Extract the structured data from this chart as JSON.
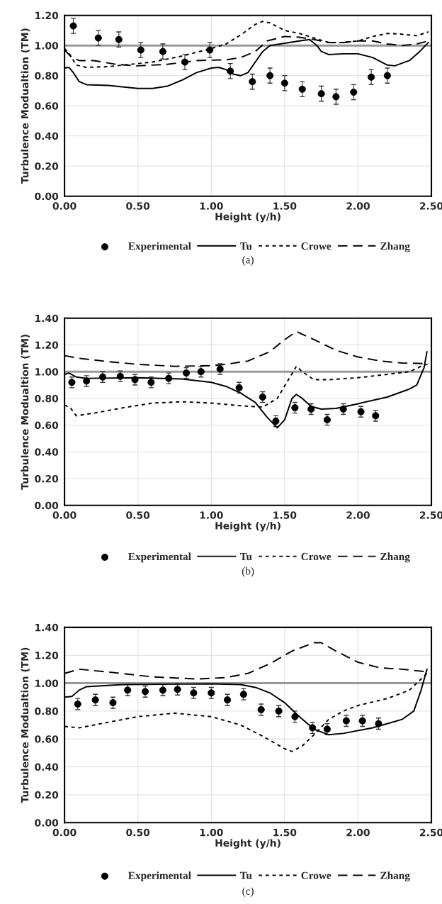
{
  "chart_data": [
    {
      "type": "line",
      "xlabel": "Height (y/h)",
      "ylabel": "Turbulence Modualtion (TM)",
      "xlim": [
        0,
        2.5
      ],
      "ylim": [
        0,
        1.2
      ],
      "xticks": [
        {
          "value": 0,
          "label": "0.00"
        },
        {
          "value": 0.5,
          "label": "0.50"
        },
        {
          "value": 1,
          "label": "1.00"
        },
        {
          "value": 1.5,
          "label": "1.50"
        },
        {
          "value": 2,
          "label": "2.00"
        },
        {
          "value": 2.5,
          "label": "2.50"
        }
      ],
      "yticks": [
        {
          "value": 0,
          "label": "0.00"
        },
        {
          "value": 0.2,
          "label": "0.20"
        },
        {
          "value": 0.4,
          "label": "0.40"
        },
        {
          "value": 0.6,
          "label": "0.60"
        },
        {
          "value": 0.8,
          "label": "0.80"
        },
        {
          "value": 1,
          "label": "1.00"
        },
        {
          "value": 1.2,
          "label": "1.20"
        }
      ],
      "grid": true,
      "legend": "bottom",
      "annotations": [
        "(a)"
      ],
      "ref_lines": [
        {
          "axis": "y",
          "value": 1,
          "color": "#999999"
        }
      ],
      "series": [
        {
          "name": "Experimental",
          "type": "scatter",
          "marker": "circle",
          "color": "#000000",
          "x": [
            0.06,
            0.23,
            0.37,
            0.52,
            0.67,
            0.82,
            0.99,
            1.13,
            1.28,
            1.4,
            1.5,
            1.62,
            1.75,
            1.85,
            1.97,
            2.09,
            2.2
          ],
          "values": [
            1.13,
            1.05,
            1.04,
            0.97,
            0.96,
            0.89,
            0.97,
            0.83,
            0.76,
            0.8,
            0.75,
            0.71,
            0.68,
            0.66,
            0.69,
            0.79,
            0.8
          ],
          "errors": [
            0.05,
            0.05,
            0.05,
            0.05,
            0.05,
            0.05,
            0.05,
            0.05,
            0.05,
            0.05,
            0.05,
            0.05,
            0.05,
            0.05,
            0.05,
            0.05,
            0.05
          ]
        },
        {
          "name": "Tu",
          "line_style": "solid",
          "color": "#000000",
          "x": [
            0,
            0.03,
            0.06,
            0.1,
            0.15,
            0.3,
            0.5,
            0.6,
            0.7,
            0.8,
            0.9,
            1.0,
            1.05,
            1.1,
            1.15,
            1.2,
            1.25,
            1.3,
            1.35,
            1.4,
            1.5,
            1.6,
            1.67,
            1.72,
            1.75,
            1.8,
            1.9,
            2.0,
            2.1,
            2.2,
            2.25,
            2.35,
            2.42,
            2.48
          ],
          "values": [
            0.85,
            0.855,
            0.82,
            0.76,
            0.74,
            0.735,
            0.715,
            0.715,
            0.73,
            0.77,
            0.82,
            0.85,
            0.855,
            0.84,
            0.81,
            0.8,
            0.82,
            0.89,
            0.96,
            1.0,
            1.015,
            1.03,
            1.04,
            1.0,
            0.96,
            0.94,
            0.945,
            0.945,
            0.92,
            0.87,
            0.865,
            0.9,
            0.96,
            1.02
          ]
        },
        {
          "name": "Crowe",
          "line_style": "dotted",
          "color": "#000000",
          "x": [
            0,
            0.03,
            0.08,
            0.15,
            0.3,
            0.4,
            0.6,
            0.8,
            1.0,
            1.1,
            1.2,
            1.3,
            1.35,
            1.4,
            1.5,
            1.6,
            1.7,
            1.8,
            1.9,
            2.0,
            2.1,
            2.2,
            2.3,
            2.4,
            2.48
          ],
          "values": [
            0.98,
            0.95,
            0.87,
            0.855,
            0.86,
            0.87,
            0.89,
            0.93,
            0.98,
            1.01,
            1.07,
            1.14,
            1.16,
            1.15,
            1.1,
            1.08,
            1.05,
            1.02,
            1.02,
            1.03,
            1.06,
            1.08,
            1.075,
            1.065,
            1.09
          ]
        },
        {
          "name": "Zhang",
          "line_style": "dashed",
          "color": "#000000",
          "x": [
            0,
            0.05,
            0.1,
            0.2,
            0.35,
            0.5,
            0.7,
            0.9,
            1.1,
            1.2,
            1.3,
            1.38,
            1.5,
            1.6,
            1.7,
            1.8,
            1.9,
            2.0,
            2.1,
            2.2,
            2.3,
            2.4,
            2.48
          ],
          "values": [
            0.97,
            0.92,
            0.9,
            0.9,
            0.875,
            0.865,
            0.875,
            0.9,
            0.905,
            0.92,
            0.96,
            1.03,
            1.06,
            1.055,
            1.04,
            1.02,
            1.02,
            1.03,
            1.03,
            1.01,
            1.0,
            1.01,
            1.03
          ]
        }
      ]
    },
    {
      "type": "line",
      "xlabel": "Height (y/h)",
      "ylabel": "Turbulence Modualtion (TM)",
      "xlim": [
        0,
        2.5
      ],
      "ylim": [
        0,
        1.4
      ],
      "xticks": [
        {
          "value": 0,
          "label": "0.00"
        },
        {
          "value": 0.5,
          "label": "0.50"
        },
        {
          "value": 1,
          "label": "1.00"
        },
        {
          "value": 1.5,
          "label": "1.50"
        },
        {
          "value": 2,
          "label": "2.00"
        },
        {
          "value": 2.5,
          "label": "2.50"
        }
      ],
      "yticks": [
        {
          "value": 0,
          "label": "0.00"
        },
        {
          "value": 0.2,
          "label": "0.20"
        },
        {
          "value": 0.4,
          "label": "0.40"
        },
        {
          "value": 0.6,
          "label": "0.60"
        },
        {
          "value": 0.8,
          "label": "0.80"
        },
        {
          "value": 1,
          "label": "1.00"
        },
        {
          "value": 1.2,
          "label": "1.20"
        },
        {
          "value": 1.4,
          "label": "1.40"
        }
      ],
      "grid": true,
      "legend": "bottom",
      "annotations": [
        "(b)"
      ],
      "ref_lines": [
        {
          "axis": "y",
          "value": 1,
          "color": "#999999"
        }
      ],
      "series": [
        {
          "name": "Experimental",
          "type": "scatter",
          "marker": "circle",
          "color": "#000000",
          "x": [
            0.05,
            0.15,
            0.26,
            0.38,
            0.48,
            0.59,
            0.71,
            0.83,
            0.93,
            1.06,
            1.19,
            1.35,
            1.44,
            1.57,
            1.68,
            1.79,
            1.9,
            2.02,
            2.12
          ],
          "values": [
            0.92,
            0.93,
            0.96,
            0.965,
            0.94,
            0.92,
            0.95,
            0.99,
            1.0,
            1.02,
            0.88,
            0.81,
            0.63,
            0.73,
            0.72,
            0.64,
            0.72,
            0.7,
            0.67
          ],
          "errors": [
            0.04,
            0.04,
            0.04,
            0.04,
            0.04,
            0.04,
            0.04,
            0.04,
            0.04,
            0.04,
            0.04,
            0.04,
            0.04,
            0.04,
            0.04,
            0.04,
            0.04,
            0.04,
            0.04
          ]
        },
        {
          "name": "Tu",
          "line_style": "solid",
          "color": "#000000",
          "x": [
            0,
            0.03,
            0.08,
            0.15,
            0.5,
            0.8,
            1.0,
            1.1,
            1.2,
            1.3,
            1.38,
            1.45,
            1.5,
            1.55,
            1.58,
            1.62,
            1.68,
            1.75,
            1.85,
            2.0,
            2.2,
            2.35,
            2.4,
            2.45,
            2.47
          ],
          "values": [
            0.98,
            0.99,
            0.96,
            0.95,
            0.955,
            0.945,
            0.92,
            0.89,
            0.84,
            0.77,
            0.66,
            0.58,
            0.64,
            0.8,
            0.83,
            0.8,
            0.74,
            0.72,
            0.725,
            0.76,
            0.81,
            0.87,
            0.9,
            1.03,
            1.15
          ]
        },
        {
          "name": "Crowe",
          "line_style": "dotted",
          "color": "#000000",
          "x": [
            0,
            0.04,
            0.08,
            0.2,
            0.4,
            0.6,
            0.8,
            1.0,
            1.2,
            1.35,
            1.45,
            1.52,
            1.58,
            1.62,
            1.7,
            1.8,
            2.0,
            2.2,
            2.35,
            2.45,
            2.5
          ],
          "values": [
            0.75,
            0.73,
            0.67,
            0.69,
            0.73,
            0.765,
            0.775,
            0.765,
            0.745,
            0.735,
            0.8,
            0.93,
            1.04,
            1.0,
            0.94,
            0.94,
            0.955,
            0.98,
            1.0,
            1.05,
            1.06
          ]
        },
        {
          "name": "Zhang",
          "line_style": "dashed",
          "color": "#000000",
          "x": [
            0,
            0.1,
            0.3,
            0.5,
            0.75,
            1.0,
            1.1,
            1.25,
            1.4,
            1.5,
            1.58,
            1.7,
            1.85,
            2.0,
            2.15,
            2.3,
            2.48
          ],
          "values": [
            1.12,
            1.1,
            1.075,
            1.055,
            1.04,
            1.045,
            1.055,
            1.08,
            1.15,
            1.24,
            1.3,
            1.24,
            1.16,
            1.11,
            1.08,
            1.065,
            1.06
          ]
        }
      ]
    },
    {
      "type": "line",
      "xlabel": "Height (y/h)",
      "ylabel": "Turbulence Modualtion (TM)",
      "xlim": [
        0,
        2.5
      ],
      "ylim": [
        0,
        1.4
      ],
      "xticks": [
        {
          "value": 0,
          "label": "0.00"
        },
        {
          "value": 0.5,
          "label": "0.50"
        },
        {
          "value": 1,
          "label": "1.00"
        },
        {
          "value": 1.5,
          "label": "1.50"
        },
        {
          "value": 2,
          "label": "2.00"
        },
        {
          "value": 2.5,
          "label": "2.50"
        }
      ],
      "yticks": [
        {
          "value": 0,
          "label": "0.00"
        },
        {
          "value": 0.2,
          "label": "0.20"
        },
        {
          "value": 0.4,
          "label": "0.40"
        },
        {
          "value": 0.6,
          "label": "0.60"
        },
        {
          "value": 0.8,
          "label": "0.80"
        },
        {
          "value": 1,
          "label": "1.00"
        },
        {
          "value": 1.2,
          "label": "1.20"
        },
        {
          "value": 1.4,
          "label": "1.40"
        }
      ],
      "grid": true,
      "legend": "bottom",
      "annotations": [
        "(c)"
      ],
      "ref_lines": [
        {
          "axis": "y",
          "value": 1,
          "color": "#999999"
        }
      ],
      "series": [
        {
          "name": "Experimental",
          "type": "scatter",
          "marker": "circle",
          "color": "#000000",
          "x": [
            0.09,
            0.21,
            0.33,
            0.43,
            0.55,
            0.67,
            0.77,
            0.88,
            1.0,
            1.11,
            1.22,
            1.34,
            1.46,
            1.57,
            1.69,
            1.79,
            1.92,
            2.03,
            2.14
          ],
          "values": [
            0.85,
            0.88,
            0.86,
            0.95,
            0.94,
            0.95,
            0.955,
            0.93,
            0.93,
            0.88,
            0.92,
            0.81,
            0.8,
            0.76,
            0.68,
            0.67,
            0.73,
            0.73,
            0.71
          ],
          "errors": [
            0.04,
            0.04,
            0.04,
            0.04,
            0.04,
            0.04,
            0.04,
            0.04,
            0.04,
            0.04,
            0.04,
            0.04,
            0.04,
            0.04,
            0.04,
            0.04,
            0.04,
            0.04,
            0.04
          ]
        },
        {
          "name": "Tu",
          "line_style": "solid",
          "color": "#000000",
          "x": [
            0,
            0.05,
            0.1,
            0.15,
            0.4,
            1.0,
            1.2,
            1.3,
            1.4,
            1.5,
            1.6,
            1.7,
            1.8,
            1.9,
            2.1,
            2.3,
            2.38,
            2.43,
            2.47
          ],
          "values": [
            0.9,
            0.905,
            0.95,
            0.975,
            0.99,
            0.995,
            0.99,
            0.97,
            0.93,
            0.86,
            0.76,
            0.67,
            0.63,
            0.64,
            0.68,
            0.74,
            0.8,
            0.95,
            1.1
          ]
        },
        {
          "name": "Crowe",
          "line_style": "dotted",
          "color": "#000000",
          "x": [
            0,
            0.1,
            0.3,
            0.5,
            0.75,
            1.0,
            1.2,
            1.35,
            1.5,
            1.55,
            1.62,
            1.7,
            1.8,
            1.9,
            2.0,
            2.2,
            2.35,
            2.48
          ],
          "values": [
            0.69,
            0.68,
            0.72,
            0.76,
            0.785,
            0.76,
            0.7,
            0.62,
            0.53,
            0.51,
            0.55,
            0.63,
            0.74,
            0.8,
            0.84,
            0.89,
            0.95,
            1.08
          ]
        },
        {
          "name": "Zhang",
          "line_style": "dashed",
          "color": "#000000",
          "x": [
            0,
            0.1,
            0.3,
            0.6,
            0.9,
            1.1,
            1.25,
            1.4,
            1.55,
            1.7,
            1.75,
            1.85,
            2.0,
            2.15,
            2.3,
            2.48
          ],
          "values": [
            1.07,
            1.1,
            1.08,
            1.045,
            1.03,
            1.04,
            1.07,
            1.14,
            1.23,
            1.29,
            1.29,
            1.23,
            1.15,
            1.11,
            1.1,
            1.08
          ]
        }
      ]
    }
  ]
}
